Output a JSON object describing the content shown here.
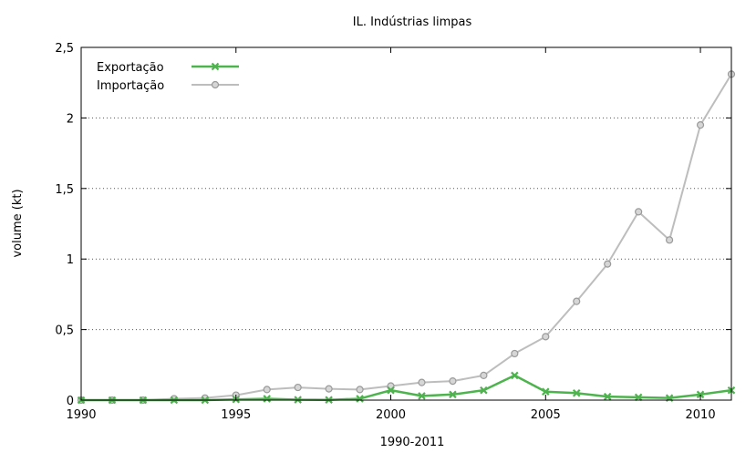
{
  "chart_data": {
    "type": "line",
    "title": "IL. Indústrias limpas",
    "xlabel": "1990-2011",
    "ylabel": "volume (kt)",
    "xlim": [
      1990,
      2011
    ],
    "ylim": [
      0,
      2.5
    ],
    "x_ticks": [
      {
        "value": 1990,
        "label": "1990"
      },
      {
        "value": 1995,
        "label": "1995"
      },
      {
        "value": 2000,
        "label": "2000"
      },
      {
        "value": 2005,
        "label": "2005"
      },
      {
        "value": 2010,
        "label": "2010"
      }
    ],
    "y_ticks": [
      {
        "value": 0,
        "label": "0"
      },
      {
        "value": 0.5,
        "label": "0,5"
      },
      {
        "value": 1,
        "label": "1"
      },
      {
        "value": 1.5,
        "label": "1,5"
      },
      {
        "value": 2,
        "label": "2"
      },
      {
        "value": 2.5,
        "label": "2,5"
      }
    ],
    "grid": "horizontal dotted",
    "legend_position": "top-left",
    "x": [
      1990,
      1991,
      1992,
      1993,
      1994,
      1995,
      1996,
      1997,
      1998,
      1999,
      2000,
      2001,
      2002,
      2003,
      2004,
      2005,
      2006,
      2007,
      2008,
      2009,
      2010,
      2011
    ],
    "series": [
      {
        "name": "Exportação",
        "color": "#4db34d",
        "marker": "x",
        "values": [
          0.0,
          0.0,
          0.0,
          0.0,
          0.0,
          0.005,
          0.01,
          0.003,
          0.002,
          0.01,
          0.07,
          0.03,
          0.04,
          0.07,
          0.175,
          0.06,
          0.05,
          0.025,
          0.02,
          0.015,
          0.04,
          0.07
        ]
      },
      {
        "name": "Importação",
        "color": "#bdbdbd",
        "marker": "circle",
        "values": [
          0.0,
          0.0,
          0.0,
          0.01,
          0.015,
          0.035,
          0.075,
          0.09,
          0.08,
          0.075,
          0.1,
          0.125,
          0.135,
          0.175,
          0.33,
          0.45,
          0.7,
          0.965,
          1.335,
          1.135,
          1.95,
          2.31
        ]
      }
    ]
  }
}
